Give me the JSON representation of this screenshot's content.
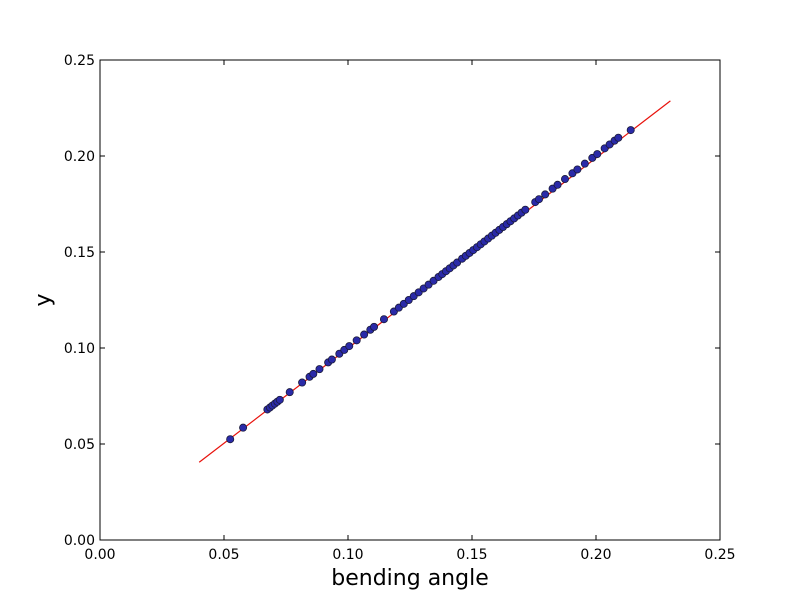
{
  "chart_data": {
    "type": "scatter",
    "title": "",
    "xlabel": "bending angle",
    "ylabel": "y",
    "xlim": [
      0.0,
      0.25
    ],
    "ylim": [
      0.0,
      0.25
    ],
    "x_ticks": [
      "0.00",
      "0.05",
      "0.10",
      "0.15",
      "0.20",
      "0.25"
    ],
    "y_ticks": [
      "0.00",
      "0.05",
      "0.10",
      "0.15",
      "0.20",
      "0.25"
    ],
    "grid": false,
    "legend": "none",
    "colors": {
      "points_fill": "#2a2aa8",
      "points_edge": "#1a1a3a",
      "fit_line": "#e8120c"
    },
    "fit_line": {
      "x": [
        0.04,
        0.23
      ],
      "y": [
        0.0405,
        0.2287
      ]
    },
    "series": [
      {
        "type": "scatter",
        "x": [
          0.0525,
          0.0577,
          0.0675,
          0.0685,
          0.0695,
          0.0705,
          0.0715,
          0.0725,
          0.0765,
          0.0815,
          0.0845,
          0.086,
          0.0885,
          0.092,
          0.0935,
          0.0965,
          0.0985,
          0.1005,
          0.1035,
          0.1065,
          0.109,
          0.1105,
          0.1145,
          0.1185,
          0.1205,
          0.1225,
          0.1245,
          0.1265,
          0.1285,
          0.1305,
          0.1325,
          0.1345,
          0.1365,
          0.138,
          0.1395,
          0.141,
          0.1425,
          0.144,
          0.146,
          0.1475,
          0.149,
          0.1505,
          0.152,
          0.1535,
          0.155,
          0.1565,
          0.158,
          0.1595,
          0.161,
          0.1625,
          0.164,
          0.1655,
          0.167,
          0.1685,
          0.17,
          0.1715,
          0.1755,
          0.177,
          0.1795,
          0.1825,
          0.1845,
          0.1875,
          0.1905,
          0.1925,
          0.1955,
          0.1985,
          0.2005,
          0.2035,
          0.2055,
          0.2075,
          0.209,
          0.214
        ],
        "y": [
          0.0525,
          0.0585,
          0.068,
          0.069,
          0.07,
          0.071,
          0.072,
          0.073,
          0.077,
          0.082,
          0.085,
          0.0865,
          0.089,
          0.0925,
          0.094,
          0.097,
          0.099,
          0.101,
          0.104,
          0.107,
          0.1095,
          0.111,
          0.115,
          0.119,
          0.121,
          0.123,
          0.125,
          0.127,
          0.129,
          0.131,
          0.133,
          0.135,
          0.137,
          0.1385,
          0.14,
          0.1415,
          0.143,
          0.1445,
          0.1465,
          0.148,
          0.1495,
          0.151,
          0.1525,
          0.154,
          0.1555,
          0.157,
          0.1585,
          0.16,
          0.1615,
          0.163,
          0.1645,
          0.166,
          0.1675,
          0.169,
          0.1705,
          0.172,
          0.176,
          0.1775,
          0.18,
          0.183,
          0.185,
          0.188,
          0.191,
          0.193,
          0.196,
          0.199,
          0.201,
          0.204,
          0.206,
          0.208,
          0.2095,
          0.2135
        ]
      }
    ]
  }
}
